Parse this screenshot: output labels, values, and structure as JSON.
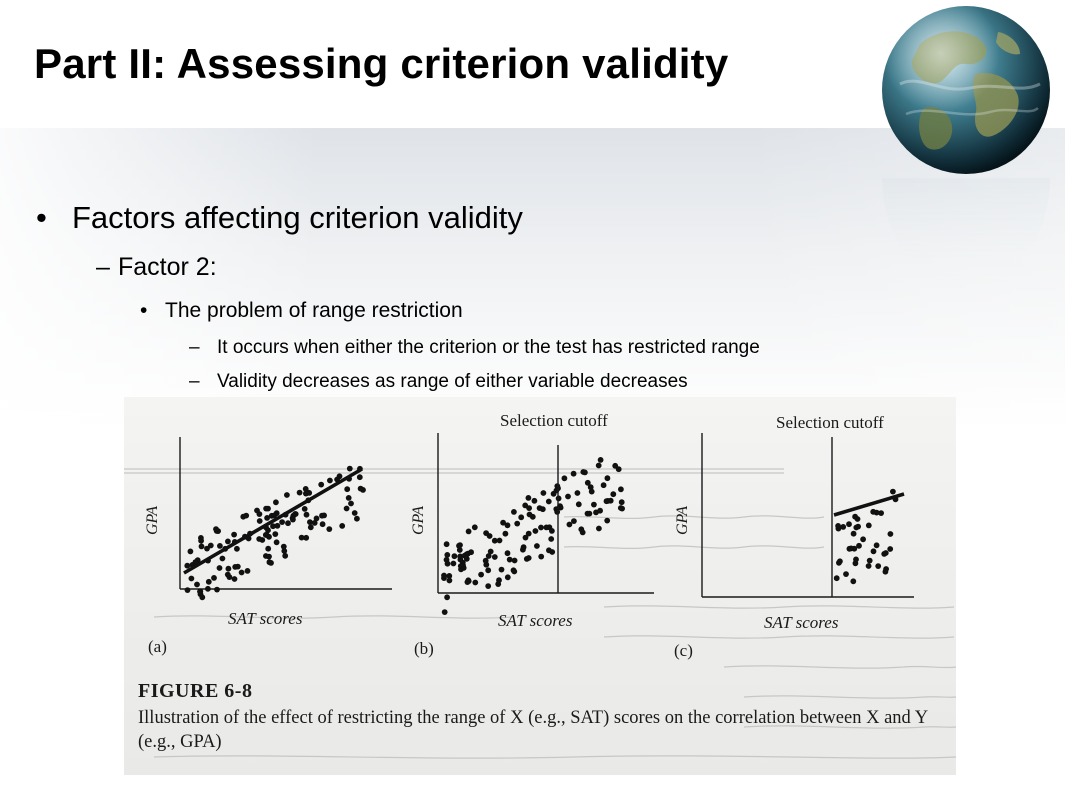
{
  "slide": {
    "title": "Part II: Assessing criterion validity",
    "bullet1": "Factors affecting criterion validity",
    "bullet2": "Factor 2:",
    "bullet3": "The problem of range restriction",
    "bullet4a": "It occurs when either the criterion or the test has restricted range",
    "bullet4b": "Validity decreases as range of either variable decreases",
    "bullet_markers": {
      "round": "•",
      "dash": "–"
    }
  },
  "figure": {
    "caption_title": "FIGURE 6-8",
    "caption_text": "Illustration of the effect of restricting the range of X (e.g., SAT) scores on the correlation between X and Y (e.g., GPA)",
    "panels": [
      {
        "label": "(a)",
        "x_axis": "SAT scores",
        "y_axis": "GPA",
        "cutoff": ""
      },
      {
        "label": "(b)",
        "x_axis": "SAT scores",
        "y_axis": "GPA",
        "cutoff": "Selection cutoff"
      },
      {
        "label": "(c)",
        "x_axis": "SAT scores",
        "y_axis": "GPA",
        "cutoff": "Selection cutoff"
      }
    ]
  },
  "colors": {
    "text": "#000000",
    "figure_bg": "#eeeeec",
    "ink": "#111111"
  }
}
